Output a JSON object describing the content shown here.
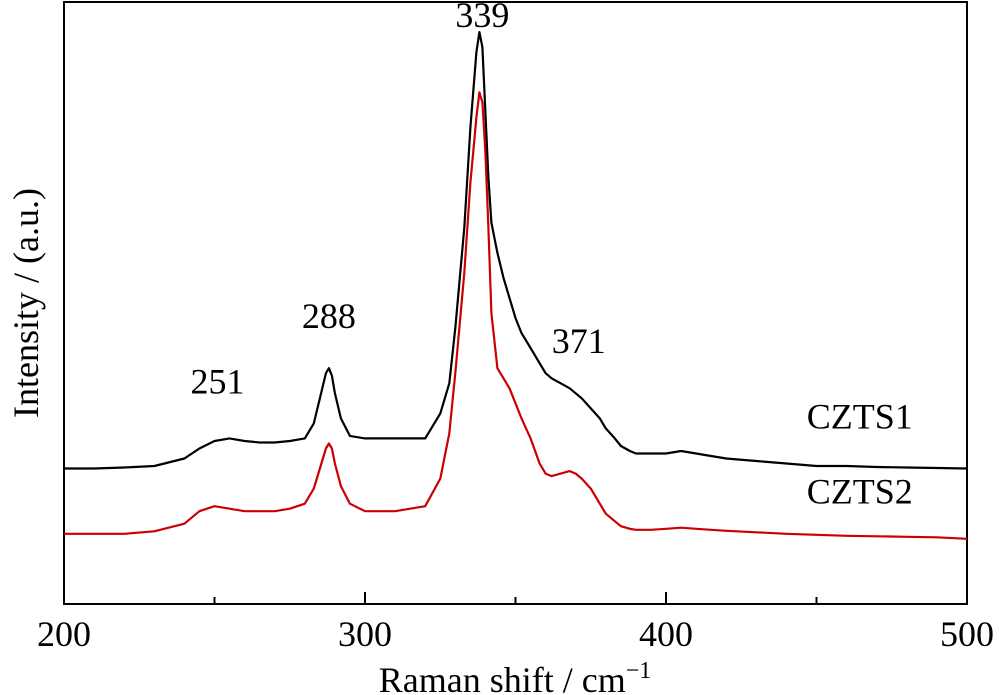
{
  "chart_data": {
    "type": "line",
    "title": "",
    "xlabel": "Raman shift / cm",
    "xlabel_superscript": "−1",
    "ylabel": "Intensity / (a.u.)",
    "xlim": [
      200,
      500
    ],
    "ylim": [
      0,
      1.2
    ],
    "x_ticks": [
      200,
      300,
      400,
      500
    ],
    "x_tick_labels": [
      "200",
      "300",
      "400",
      "500"
    ],
    "grid": false,
    "peak_labels": [
      {
        "x": 251,
        "y": 0.42,
        "text": "251"
      },
      {
        "x": 288,
        "y": 0.55,
        "text": "288"
      },
      {
        "x": 339,
        "y": 1.15,
        "text": "339"
      },
      {
        "x": 371,
        "y": 0.5,
        "text": "371"
      }
    ],
    "series": [
      {
        "name": "CZTS1",
        "color": "#000000",
        "label_x": 482,
        "label_y": 0.35,
        "x": [
          200,
          210,
          220,
          230,
          240,
          245,
          250,
          255,
          260,
          265,
          270,
          275,
          280,
          283,
          285,
          287,
          288,
          289,
          290,
          292,
          295,
          300,
          305,
          310,
          315,
          320,
          325,
          328,
          330,
          333,
          335,
          337,
          338,
          339,
          340,
          341,
          342,
          344,
          346,
          348,
          350,
          352,
          355,
          358,
          360,
          362,
          365,
          368,
          370,
          372,
          375,
          378,
          380,
          383,
          385,
          388,
          390,
          395,
          400,
          405,
          410,
          415,
          420,
          430,
          440,
          450,
          460,
          470,
          480,
          490,
          500
        ],
        "y": [
          0.27,
          0.27,
          0.272,
          0.275,
          0.29,
          0.31,
          0.325,
          0.33,
          0.325,
          0.322,
          0.322,
          0.325,
          0.33,
          0.36,
          0.41,
          0.46,
          0.47,
          0.455,
          0.42,
          0.37,
          0.335,
          0.33,
          0.33,
          0.33,
          0.33,
          0.33,
          0.38,
          0.44,
          0.55,
          0.75,
          0.95,
          1.1,
          1.14,
          1.11,
          0.98,
          0.85,
          0.76,
          0.7,
          0.65,
          0.61,
          0.57,
          0.54,
          0.51,
          0.48,
          0.46,
          0.45,
          0.44,
          0.43,
          0.42,
          0.41,
          0.39,
          0.37,
          0.35,
          0.33,
          0.315,
          0.305,
          0.3,
          0.3,
          0.3,
          0.305,
          0.3,
          0.295,
          0.29,
          0.285,
          0.28,
          0.275,
          0.275,
          0.273,
          0.272,
          0.271,
          0.27
        ]
      },
      {
        "name": "CZTS2",
        "color": "#cc0000",
        "label_x": 482,
        "label_y": 0.2,
        "x": [
          200,
          210,
          220,
          230,
          240,
          245,
          250,
          255,
          260,
          265,
          270,
          275,
          280,
          283,
          285,
          287,
          288,
          289,
          290,
          292,
          295,
          300,
          305,
          310,
          315,
          320,
          325,
          328,
          330,
          333,
          335,
          337,
          338,
          339,
          340,
          341,
          342,
          344,
          346,
          348,
          350,
          352,
          355,
          358,
          360,
          362,
          365,
          368,
          370,
          372,
          375,
          378,
          380,
          383,
          385,
          388,
          390,
          395,
          400,
          405,
          410,
          415,
          420,
          430,
          440,
          450,
          460,
          470,
          480,
          490,
          500
        ],
        "y": [
          0.14,
          0.14,
          0.14,
          0.145,
          0.16,
          0.185,
          0.195,
          0.19,
          0.185,
          0.185,
          0.185,
          0.19,
          0.2,
          0.23,
          0.27,
          0.31,
          0.32,
          0.31,
          0.28,
          0.235,
          0.2,
          0.185,
          0.185,
          0.185,
          0.19,
          0.195,
          0.25,
          0.34,
          0.46,
          0.66,
          0.84,
          0.97,
          1.02,
          1.0,
          0.9,
          0.75,
          0.58,
          0.47,
          0.45,
          0.43,
          0.4,
          0.37,
          0.33,
          0.28,
          0.26,
          0.255,
          0.26,
          0.265,
          0.26,
          0.25,
          0.23,
          0.2,
          0.18,
          0.165,
          0.155,
          0.15,
          0.148,
          0.148,
          0.15,
          0.152,
          0.15,
          0.148,
          0.146,
          0.143,
          0.14,
          0.138,
          0.136,
          0.135,
          0.134,
          0.133,
          0.13
        ]
      }
    ]
  }
}
